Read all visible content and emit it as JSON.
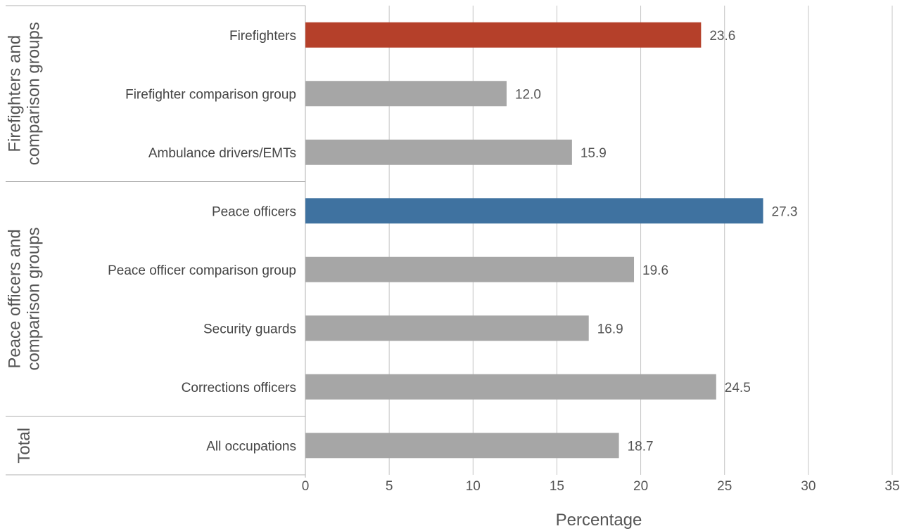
{
  "chart_data": {
    "type": "bar",
    "orientation": "horizontal",
    "xlabel": "Percentage",
    "xlim": [
      0,
      35
    ],
    "xticks": [
      0,
      5,
      10,
      15,
      20,
      25,
      30,
      35
    ],
    "grid": "vertical",
    "groups": [
      {
        "label": "Firefighters and comparison groups",
        "label_lines": [
          "Firefighters and",
          "comparison groups"
        ],
        "items": [
          {
            "category": "Firefighters",
            "value": 23.6,
            "value_label": "23.6",
            "color": "#b5402a"
          },
          {
            "category": "Firefighter comparison group",
            "value": 12.0,
            "value_label": "12.0",
            "color": "#a6a6a6"
          },
          {
            "category": "Ambulance drivers/EMTs",
            "value": 15.9,
            "value_label": "15.9",
            "color": "#a6a6a6"
          }
        ]
      },
      {
        "label": "Peace officers and comparison groups",
        "label_lines": [
          "Peace officers and",
          "comparison groups"
        ],
        "items": [
          {
            "category": "Peace officers",
            "value": 27.3,
            "value_label": "27.3",
            "color": "#3f72a0"
          },
          {
            "category": "Peace officer comparison group",
            "value": 19.6,
            "value_label": "19.6",
            "color": "#a6a6a6"
          },
          {
            "category": "Security guards",
            "value": 16.9,
            "value_label": "16.9",
            "color": "#a6a6a6"
          },
          {
            "category": "Corrections officers",
            "value": 24.5,
            "value_label": "24.5",
            "color": "#a6a6a6"
          }
        ]
      },
      {
        "label": "Total",
        "label_lines": [
          "Total"
        ],
        "items": [
          {
            "category": "All occupations",
            "value": 18.7,
            "value_label": "18.7",
            "color": "#a6a6a6"
          }
        ]
      }
    ]
  }
}
